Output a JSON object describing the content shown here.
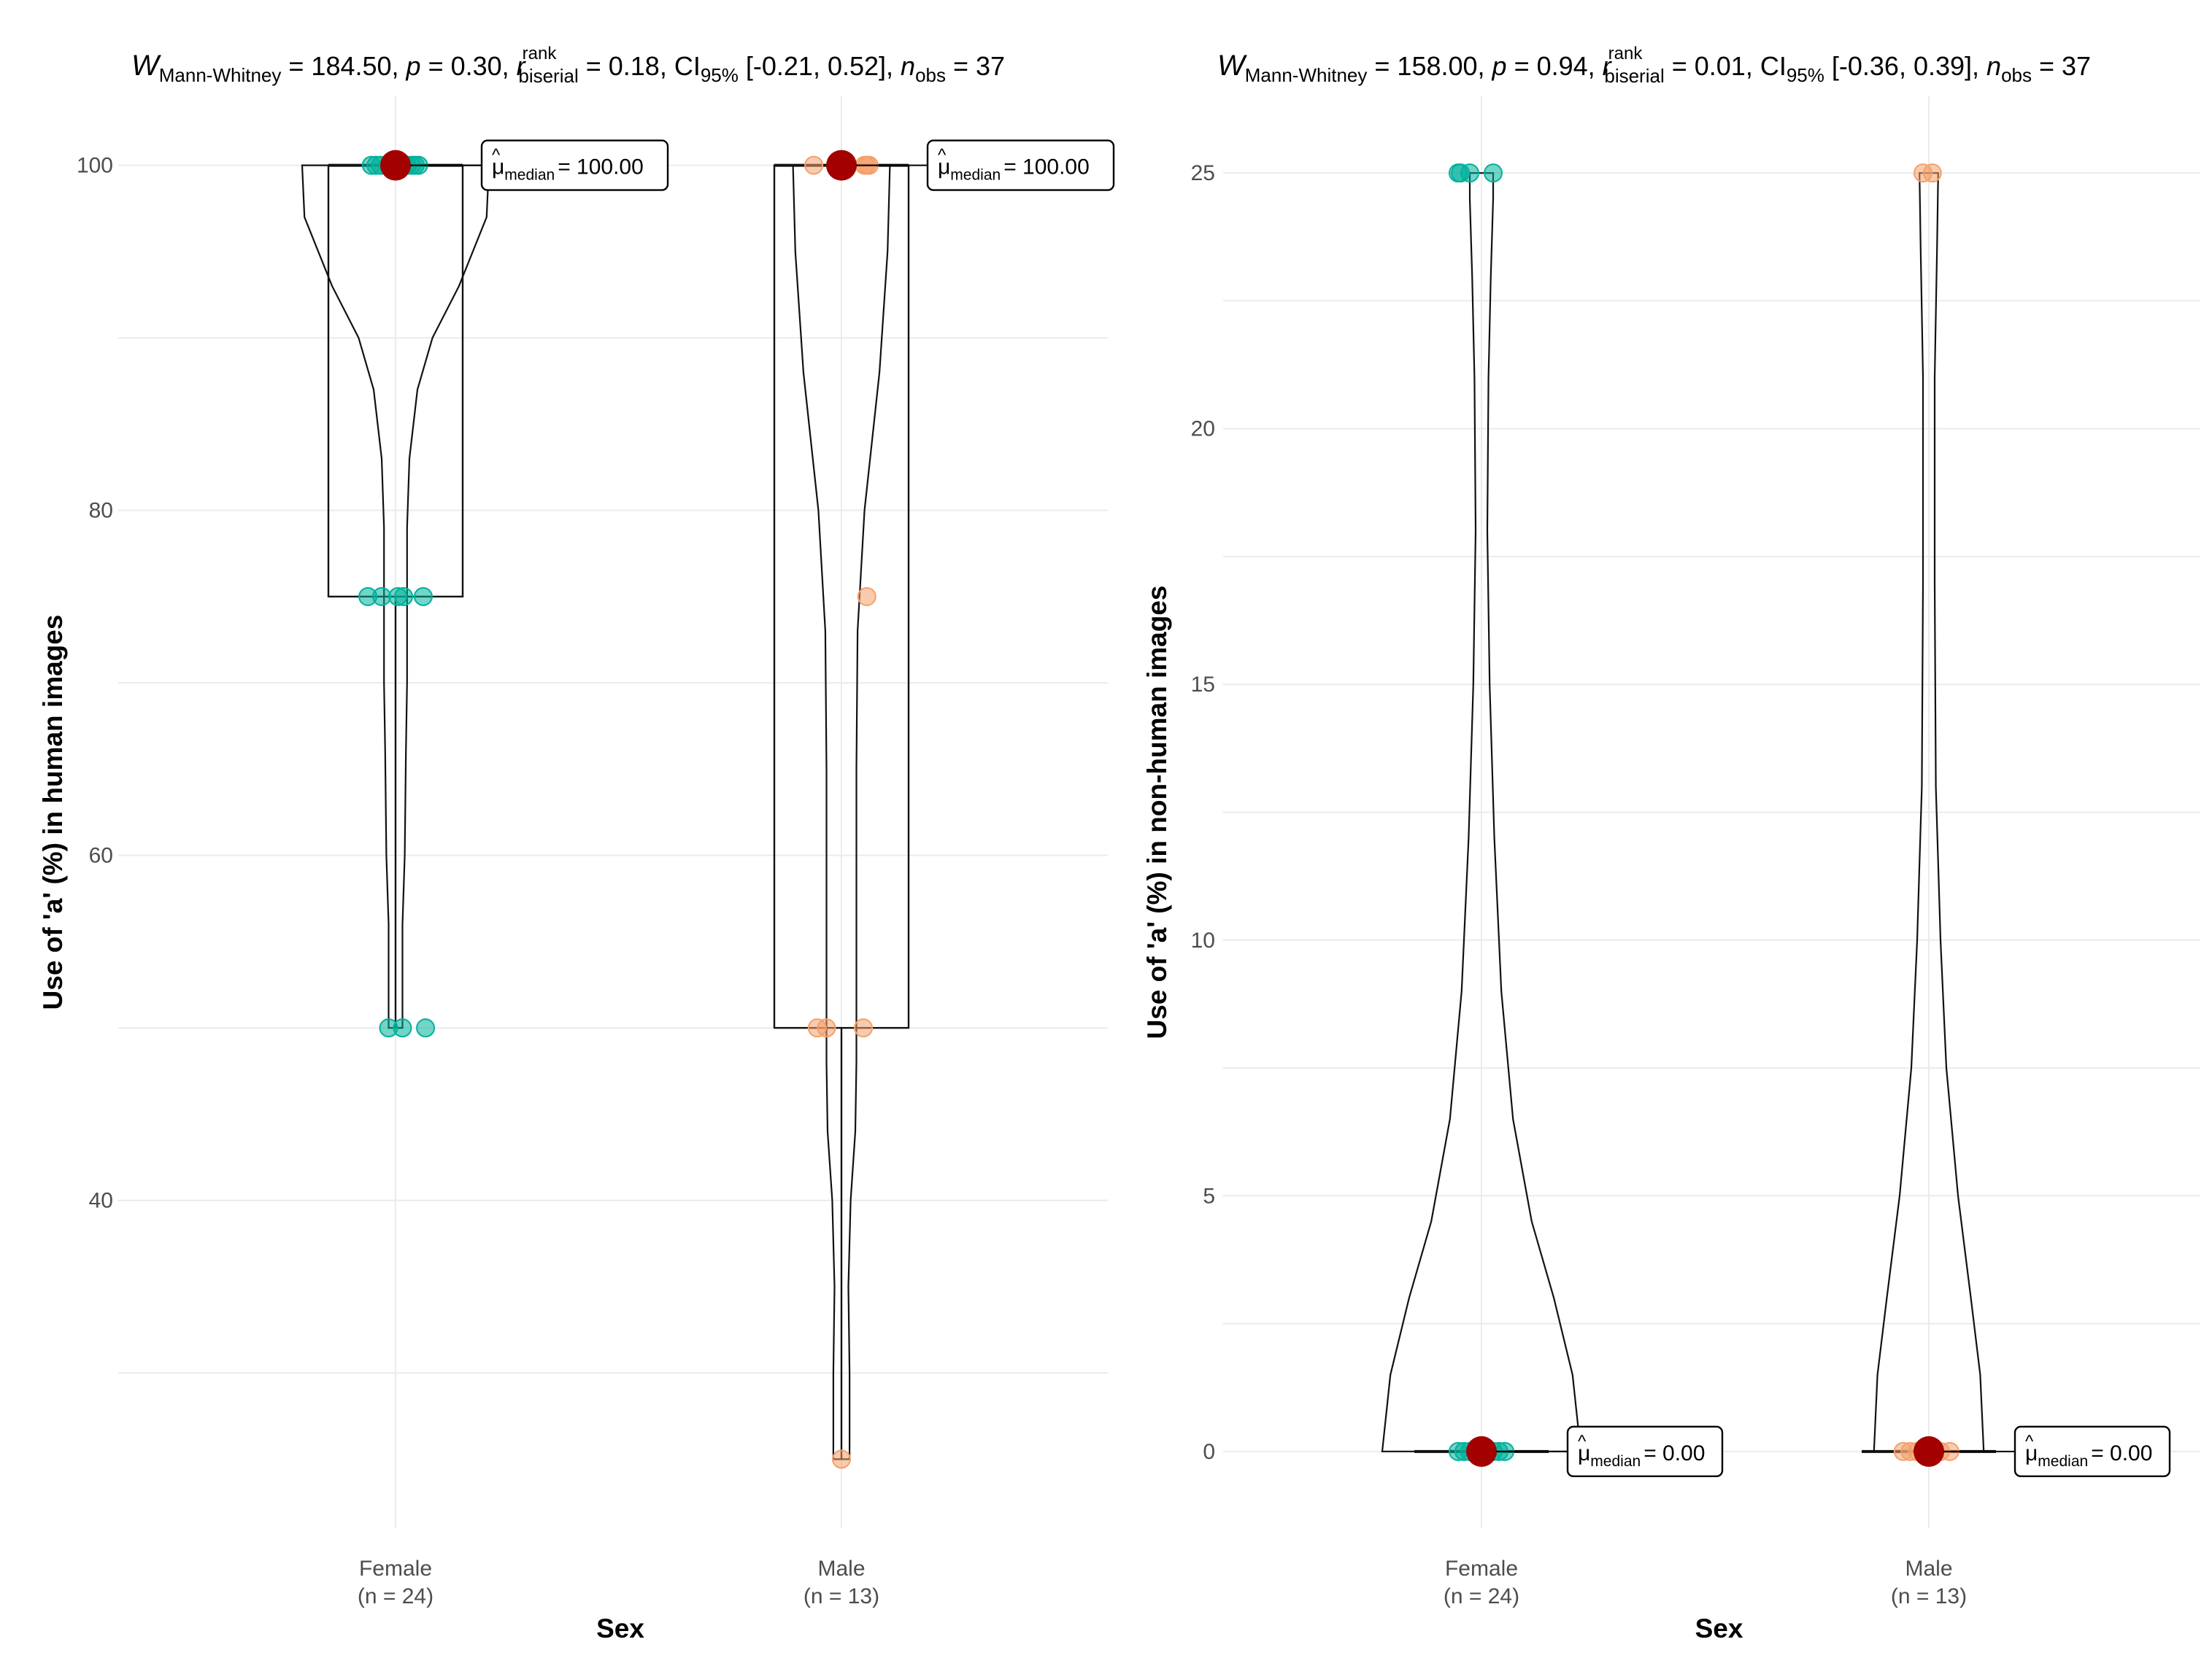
{
  "chart_data": [
    {
      "type": "violin-box",
      "title": {
        "W_label": "W",
        "W_sub": "Mann-Whitney",
        "W_val": " = 184.50, ",
        "p_label": "p",
        "p_val": " = 0.30, ",
        "r_label": "r",
        "r_hat": "^",
        "r_sup": "rank",
        "r_sub": "biserial",
        "r_val": " = 0.18, ",
        "ci_label": "CI",
        "ci_sub": "95%",
        "ci_val": " [-0.21, 0.52], ",
        "n_label": "n",
        "n_sub": "obs",
        "n_val": " = 37"
      },
      "xlabel": "Sex",
      "ylabel": "Use of 'a' (%) in human images",
      "ylim": [
        21,
        104
      ],
      "yticks": [
        40,
        60,
        80,
        100
      ],
      "ytick_labels": [
        "40",
        "60",
        "80",
        "100"
      ],
      "yminor": [
        30,
        50,
        70,
        90
      ],
      "groups": [
        {
          "name": "Female",
          "n_label": "(n = 24)",
          "color": "#00b09b",
          "median": 100,
          "q1": 75,
          "q3": 100,
          "whisker_low": 50,
          "whisker_high": 100,
          "median_label": "= 100.00",
          "violin": [
            [
              100,
              0.81
            ],
            [
              97,
              0.79
            ],
            [
              93,
              0.55
            ],
            [
              90,
              0.32
            ],
            [
              87,
              0.19
            ],
            [
              83,
              0.12
            ],
            [
              79,
              0.1
            ],
            [
              75,
              0.1
            ],
            [
              70,
              0.1
            ],
            [
              66,
              0.09
            ],
            [
              60,
              0.08
            ],
            [
              56,
              0.06
            ],
            [
              53,
              0.06
            ],
            [
              50,
              0.06
            ]
          ],
          "points": [
            {
              "y": 100,
              "dx": -0.21
            },
            {
              "y": 100,
              "dx": -0.17
            },
            {
              "y": 100,
              "dx": -0.13
            },
            {
              "y": 100,
              "dx": -0.06
            },
            {
              "y": 100,
              "dx": 0.05
            },
            {
              "y": 100,
              "dx": 0.1
            },
            {
              "y": 100,
              "dx": 0.14
            },
            {
              "y": 100,
              "dx": 0.17
            },
            {
              "y": 100,
              "dx": 0.2
            },
            {
              "y": 100,
              "dx": -0.02
            },
            {
              "y": 75,
              "dx": -0.24
            },
            {
              "y": 75,
              "dx": -0.12
            },
            {
              "y": 75,
              "dx": 0.02
            },
            {
              "y": 75,
              "dx": 0.07
            },
            {
              "y": 75,
              "dx": 0.24
            },
            {
              "y": 50,
              "dx": -0.06
            },
            {
              "y": 50,
              "dx": 0.06
            },
            {
              "y": 50,
              "dx": 0.26
            }
          ]
        },
        {
          "name": "Male",
          "n_label": "(n = 13)",
          "color": "#f4a06c",
          "median": 100,
          "q1": 50,
          "q3": 100,
          "whisker_low": 25,
          "whisker_high": 100,
          "median_label": "= 100.00",
          "violin": [
            [
              100,
              0.42
            ],
            [
              95,
              0.4
            ],
            [
              88,
              0.33
            ],
            [
              80,
              0.2
            ],
            [
              73,
              0.14
            ],
            [
              65,
              0.13
            ],
            [
              58,
              0.13
            ],
            [
              52,
              0.13
            ],
            [
              48,
              0.13
            ],
            [
              44,
              0.12
            ],
            [
              40,
              0.08
            ],
            [
              35,
              0.06
            ],
            [
              30,
              0.07
            ],
            [
              25,
              0.07
            ]
          ],
          "points": [
            {
              "y": 100,
              "dx": -0.24
            },
            {
              "y": 100,
              "dx": 0.2
            },
            {
              "y": 100,
              "dx": 0.22
            },
            {
              "y": 100,
              "dx": 0.24
            },
            {
              "y": 75,
              "dx": 0.22
            },
            {
              "y": 50,
              "dx": -0.21
            },
            {
              "y": 50,
              "dx": -0.13
            },
            {
              "y": 50,
              "dx": 0.19
            },
            {
              "y": 25,
              "dx": 0.0
            }
          ]
        }
      ]
    },
    {
      "type": "violin-box",
      "title": {
        "W_label": "W",
        "W_sub": "Mann-Whitney",
        "W_val": " = 158.00, ",
        "p_label": "p",
        "p_val": " = 0.94, ",
        "r_label": "r",
        "r_hat": "^",
        "r_sup": "rank",
        "r_sub": "biserial",
        "r_val": " = 0.01, ",
        "ci_label": "CI",
        "ci_sub": "95%",
        "ci_val": " [-0.36, 0.39], ",
        "n_label": "n",
        "n_sub": "obs",
        "n_val": " = 37"
      },
      "xlabel": "Sex",
      "ylabel": "Use of 'a' (%) in non-human images",
      "ylim": [
        -1.5,
        26.5
      ],
      "yticks": [
        0,
        5,
        10,
        15,
        20,
        25
      ],
      "ytick_labels": [
        "0",
        "5",
        "10",
        "15",
        "20",
        "25"
      ],
      "yminor": [
        2.5,
        7.5,
        12.5,
        17.5,
        22.5
      ],
      "groups": [
        {
          "name": "Female",
          "n_label": "(n = 24)",
          "color": "#00b09b",
          "median": 0,
          "q1": 0,
          "q3": 0,
          "whisker_low": 0,
          "whisker_high": 0,
          "median_label": "= 0.00",
          "violin": [
            [
              0,
              0.85
            ],
            [
              1.5,
              0.78
            ],
            [
              3,
              0.62
            ],
            [
              4.5,
              0.43
            ],
            [
              6.5,
              0.27
            ],
            [
              9,
              0.17
            ],
            [
              12,
              0.11
            ],
            [
              15,
              0.07
            ],
            [
              18,
              0.05
            ],
            [
              21,
              0.06
            ],
            [
              23,
              0.08
            ],
            [
              24.5,
              0.1
            ],
            [
              25,
              0.1
            ]
          ],
          "points": [
            {
              "y": 25,
              "dx": -0.2
            },
            {
              "y": 25,
              "dx": -0.18
            },
            {
              "y": 25,
              "dx": -0.1
            },
            {
              "y": 25,
              "dx": 0.1
            },
            {
              "y": 0,
              "dx": -0.2
            },
            {
              "y": 0,
              "dx": -0.15
            },
            {
              "y": 0,
              "dx": -0.1
            },
            {
              "y": 0,
              "dx": -0.05
            },
            {
              "y": 0,
              "dx": 0.05
            },
            {
              "y": 0,
              "dx": 0.1
            },
            {
              "y": 0,
              "dx": 0.15
            },
            {
              "y": 0,
              "dx": 0.2
            }
          ]
        },
        {
          "name": "Male",
          "n_label": "(n = 13)",
          "color": "#f4a06c",
          "median": 0,
          "q1": 0,
          "q3": 0,
          "whisker_low": 0,
          "whisker_high": 0,
          "median_label": "= 0.00",
          "violin": [
            [
              0,
              0.47
            ],
            [
              1.5,
              0.44
            ],
            [
              3,
              0.36
            ],
            [
              5,
              0.25
            ],
            [
              7.5,
              0.15
            ],
            [
              10,
              0.1
            ],
            [
              13,
              0.06
            ],
            [
              17,
              0.05
            ],
            [
              21,
              0.05
            ],
            [
              23.5,
              0.07
            ],
            [
              25,
              0.08
            ]
          ],
          "points": [
            {
              "y": 25,
              "dx": -0.05
            },
            {
              "y": 25,
              "dx": 0.03
            },
            {
              "y": 0,
              "dx": -0.22
            },
            {
              "y": 0,
              "dx": -0.16
            },
            {
              "y": 0,
              "dx": -0.1
            },
            {
              "y": 0,
              "dx": 0.05
            },
            {
              "y": 0,
              "dx": 0.1
            },
            {
              "y": 0,
              "dx": 0.18
            }
          ]
        }
      ]
    }
  ],
  "median_marker_color": "#a30000",
  "median_label_mu": "μ",
  "median_label_sub": "median"
}
